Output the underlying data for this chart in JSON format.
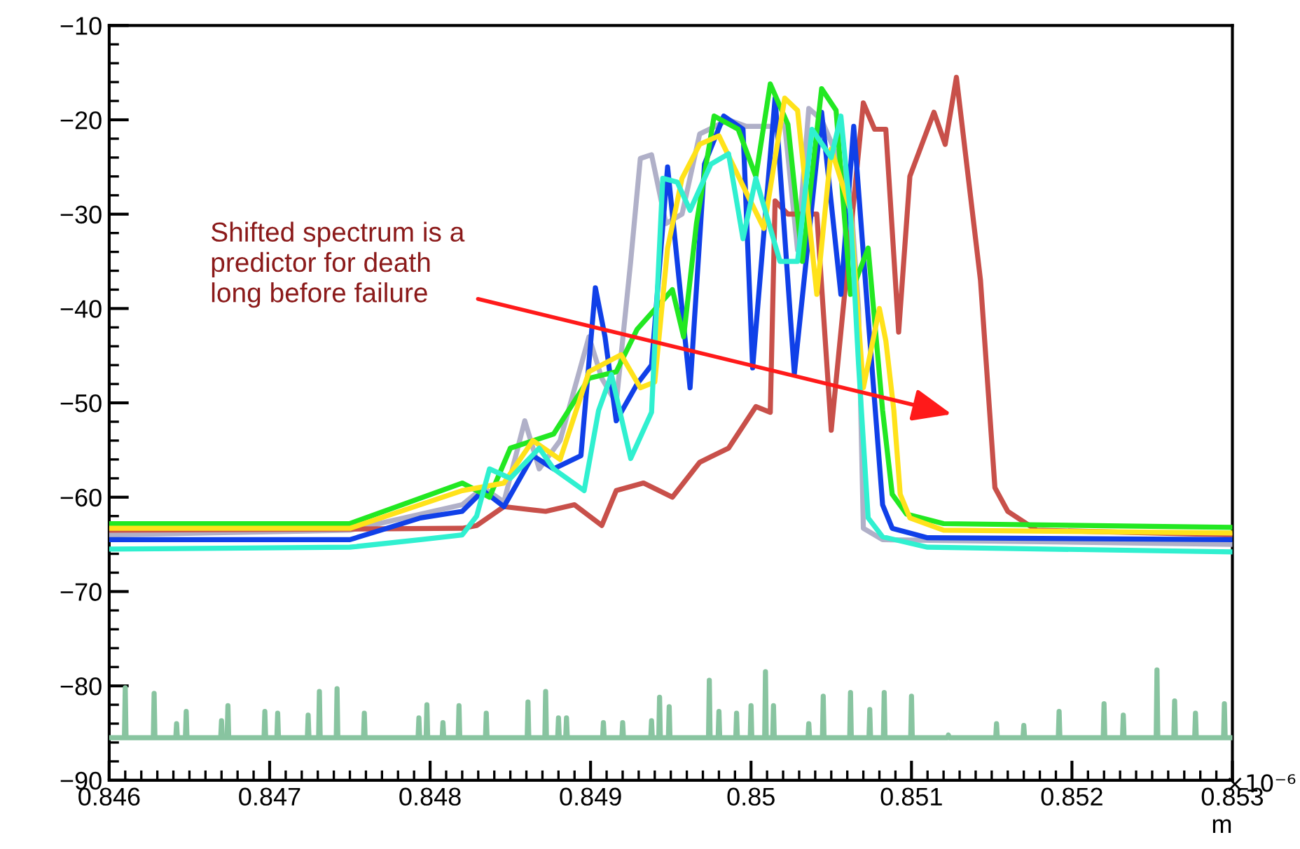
{
  "chart_data": {
    "type": "line",
    "xlabel": "m",
    "xlim": [
      0.846,
      0.853
    ],
    "xticks": [
      0.846,
      0.847,
      0.848,
      0.849,
      0.85,
      0.851,
      0.852,
      0.853
    ],
    "ylim": [
      -90,
      -10
    ],
    "yticks": [
      -90,
      -80,
      -70,
      -60,
      -50,
      -40,
      -30,
      -20,
      -10
    ],
    "grid": false,
    "legend": false,
    "marker": "none",
    "line_style": "solid",
    "annotations": [
      "Shifted spectrum is a\npredictor for death\nlong before failure",
      "×10⁻⁶"
    ],
    "series": [
      {
        "color": "#88c4a0",
        "x": [
          0.846,
          0.846095,
          0.8461,
          0.846105,
          0.846275,
          0.84628,
          0.846285,
          0.846415,
          0.84642,
          0.846425,
          0.846475,
          0.84648,
          0.846485,
          0.846695,
          0.8467,
          0.846705,
          0.846735,
          0.84674,
          0.846745,
          0.846965,
          0.84697,
          0.846975,
          0.847045,
          0.84705,
          0.847055,
          0.847235,
          0.84724,
          0.847245,
          0.847305,
          0.84731,
          0.847315,
          0.847415,
          0.84742,
          0.847425,
          0.847585,
          0.84759,
          0.847595,
          0.847925,
          0.84793,
          0.847935,
          0.847975,
          0.84798,
          0.847985,
          0.848075,
          0.84808,
          0.848085,
          0.848175,
          0.84818,
          0.848185,
          0.848345,
          0.84835,
          0.848355,
          0.848605,
          0.84861,
          0.848615,
          0.848715,
          0.84872,
          0.848725,
          0.848795,
          0.8488,
          0.848805,
          0.848845,
          0.84885,
          0.848855,
          0.849075,
          0.84908,
          0.849085,
          0.849195,
          0.8492,
          0.849205,
          0.849375,
          0.84938,
          0.849385,
          0.849425,
          0.84943,
          0.849435,
          0.849485,
          0.84949,
          0.849495,
          0.849735,
          0.84974,
          0.849745,
          0.849795,
          0.8498,
          0.849805,
          0.849905,
          0.84991,
          0.849915,
          0.849995,
          0.85,
          0.850005,
          0.850085,
          0.85009,
          0.850095,
          0.850135,
          0.85014,
          0.850145,
          0.850355,
          0.85036,
          0.850365,
          0.850445,
          0.85045,
          0.850455,
          0.850615,
          0.85062,
          0.850625,
          0.850735,
          0.85074,
          0.850745,
          0.850825,
          0.85083,
          0.850835,
          0.850995,
          0.851,
          0.851005,
          0.851225,
          0.85123,
          0.851235,
          0.851525,
          0.85153,
          0.851535,
          0.851695,
          0.8517,
          0.851705,
          0.851915,
          0.85192,
          0.851925,
          0.852195,
          0.8522,
          0.852205,
          0.852315,
          0.85232,
          0.852325,
          0.852525,
          0.85253,
          0.852535,
          0.852635,
          0.85264,
          0.852645,
          0.852765,
          0.85277,
          0.852775,
          0.852945,
          0.85295,
          0.852955,
          0.853
        ],
        "values": [
          -85.5,
          -85.5,
          -80.2,
          -85.5,
          -85.5,
          -80.8,
          -85.5,
          -85.5,
          -84.0,
          -85.5,
          -85.5,
          -82.7,
          -85.5,
          -85.5,
          -83.7,
          -85.5,
          -85.5,
          -82.1,
          -85.5,
          -85.5,
          -82.7,
          -85.5,
          -85.5,
          -82.9,
          -85.5,
          -85.5,
          -83.1,
          -85.5,
          -85.5,
          -80.6,
          -85.5,
          -85.5,
          -80.3,
          -85.5,
          -85.5,
          -82.9,
          -85.5,
          -85.5,
          -83.4,
          -85.5,
          -85.5,
          -82.0,
          -85.5,
          -85.5,
          -83.9,
          -85.5,
          -85.5,
          -82.1,
          -85.5,
          -85.5,
          -82.9,
          -85.5,
          -85.5,
          -81.7,
          -85.5,
          -85.5,
          -80.6,
          -85.5,
          -85.5,
          -83.4,
          -85.5,
          -85.5,
          -83.4,
          -85.5,
          -85.5,
          -83.9,
          -85.5,
          -85.5,
          -83.9,
          -85.5,
          -85.5,
          -83.7,
          -85.5,
          -85.5,
          -81.2,
          -85.5,
          -85.5,
          -82.2,
          -85.5,
          -85.5,
          -79.4,
          -85.5,
          -85.5,
          -82.7,
          -85.5,
          -85.5,
          -82.9,
          -85.5,
          -85.5,
          -82.1,
          -85.5,
          -85.5,
          -78.5,
          -85.5,
          -85.5,
          -82.1,
          -85.5,
          -85.5,
          -84.0,
          -85.5,
          -85.5,
          -81.1,
          -85.5,
          -85.5,
          -80.7,
          -85.5,
          -85.5,
          -82.5,
          -85.5,
          -85.5,
          -80.7,
          -85.5,
          -85.5,
          -81.1,
          -85.5,
          -85.5,
          -85.2,
          -85.5,
          -85.5,
          -84.0,
          -85.5,
          -85.5,
          -84.2,
          -85.5,
          -85.5,
          -82.7,
          -85.5,
          -85.5,
          -81.9,
          -85.5,
          -85.5,
          -83.1,
          -85.5,
          -85.5,
          -78.3,
          -85.5,
          -85.5,
          -81.6,
          -85.5,
          -85.5,
          -82.9,
          -85.5,
          -85.5,
          -81.9,
          -85.5,
          -85.5
        ]
      },
      {
        "color": "#b0b0c8",
        "x": [
          0.846,
          0.8475,
          0.8482,
          0.84833,
          0.84846,
          0.84859,
          0.84868,
          0.84881,
          0.84899,
          0.84907,
          0.84916,
          0.84925,
          0.84931,
          0.84938,
          0.84947,
          0.84957,
          0.84968,
          0.84986,
          0.84997,
          0.85012,
          0.85021,
          0.85029,
          0.85036,
          0.85044,
          0.85053,
          0.85062,
          0.85067,
          0.8507,
          0.85082,
          0.853
        ],
        "values": [
          -64,
          -63.5,
          -60.8,
          -59,
          -60.5,
          -51.9,
          -57,
          -54,
          -43,
          -47.4,
          -50,
          -35,
          -24.1,
          -23.7,
          -31,
          -30,
          -21.5,
          -20,
          -20.7,
          -20.7,
          -20.5,
          -33.8,
          -18.8,
          -20,
          -23.6,
          -28,
          -40,
          -63.3,
          -64.5,
          -65
        ]
      },
      {
        "color": "#c8504a",
        "x": [
          0.846,
          0.8482,
          0.84829,
          0.84846,
          0.84872,
          0.8489,
          0.84907,
          0.84916,
          0.84933,
          0.84951,
          0.84968,
          0.84986,
          0.85003,
          0.85012,
          0.85015,
          0.85023,
          0.85041,
          0.8505,
          0.8507,
          0.85077,
          0.85084,
          0.85092,
          0.85099,
          0.85114,
          0.85121,
          0.85128,
          0.85143,
          0.85152,
          0.8516,
          0.85178,
          0.853
        ],
        "values": [
          -63.5,
          -63.3,
          -63,
          -61,
          -61.5,
          -60.8,
          -63,
          -59.3,
          -58.5,
          -60,
          -56.3,
          -54.8,
          -50.4,
          -51,
          -28.6,
          -30,
          -30,
          -52.9,
          -18.2,
          -21,
          -21,
          -42.5,
          -26,
          -19.2,
          -22.6,
          -15.5,
          -37,
          -59,
          -61.5,
          -63.5,
          -64
        ]
      },
      {
        "color": "#1040e8",
        "x": [
          0.846,
          0.8475,
          0.84794,
          0.8482,
          0.84833,
          0.84846,
          0.84864,
          0.84877,
          0.84894,
          0.84903,
          0.84909,
          0.84916,
          0.84929,
          0.84938,
          0.84948,
          0.84962,
          0.84971,
          0.84983,
          0.84995,
          0.85001,
          0.85015,
          0.85027,
          0.85044,
          0.85056,
          0.85064,
          0.85073,
          0.85082,
          0.85088,
          0.8511,
          0.853
        ],
        "values": [
          -64.5,
          -64.5,
          -62.2,
          -61.5,
          -59.3,
          -61,
          -55.6,
          -57,
          -55.6,
          -37.8,
          -43,
          -51.9,
          -48,
          -46,
          -25,
          -48.4,
          -24.7,
          -19.6,
          -21,
          -46.3,
          -17.7,
          -46.9,
          -19.2,
          -38.5,
          -20.7,
          -41,
          -60.8,
          -63.3,
          -64.3,
          -64.5
        ]
      },
      {
        "color": "#22e822",
        "x": [
          0.846,
          0.8475,
          0.8482,
          0.84837,
          0.8485,
          0.84877,
          0.84899,
          0.84916,
          0.84929,
          0.84951,
          0.84958,
          0.84966,
          0.84977,
          0.84992,
          0.85003,
          0.85012,
          0.85023,
          0.85032,
          0.85044,
          0.85053,
          0.85062,
          0.85073,
          0.85082,
          0.85088,
          0.85097,
          0.8512,
          0.853
        ],
        "values": [
          -62.8,
          -62.8,
          -58.5,
          -60,
          -54.8,
          -53.3,
          -47.4,
          -46.7,
          -42.2,
          -38,
          -43,
          -31,
          -19.6,
          -21,
          -26,
          -16.2,
          -20.5,
          -35,
          -16.7,
          -19,
          -38.5,
          -33.6,
          -50.8,
          -59.7,
          -61.8,
          -62.8,
          -63.2
        ]
      },
      {
        "color": "#ffe21a",
        "x": [
          0.846,
          0.8475,
          0.8482,
          0.84846,
          0.84864,
          0.84881,
          0.84899,
          0.84919,
          0.84931,
          0.8494,
          0.84948,
          0.84957,
          0.84968,
          0.8498,
          0.84995,
          0.85008,
          0.85021,
          0.85029,
          0.85041,
          0.8505,
          0.85062,
          0.8507,
          0.8508,
          0.85084,
          0.85089,
          0.85093,
          0.85099,
          0.8512,
          0.853
        ],
        "values": [
          -63.3,
          -63.3,
          -59.3,
          -58.5,
          -54,
          -56,
          -46.7,
          -44.9,
          -48.4,
          -47.8,
          -33.6,
          -26.2,
          -22.6,
          -21.7,
          -27,
          -31.5,
          -17.7,
          -19,
          -38.5,
          -23.1,
          -29.6,
          -48.4,
          -40,
          -43.4,
          -50.8,
          -59.7,
          -62.2,
          -63.5,
          -63.8
        ]
      },
      {
        "color": "#30f0d0",
        "x": [
          0.846,
          0.8475,
          0.84794,
          0.8482,
          0.84829,
          0.84837,
          0.8485,
          0.84868,
          0.84877,
          0.84896,
          0.84905,
          0.84913,
          0.84925,
          0.84938,
          0.84945,
          0.84954,
          0.84962,
          0.84975,
          0.84986,
          0.84995,
          0.85003,
          0.85018,
          0.85029,
          0.85038,
          0.8505,
          0.85056,
          0.85062,
          0.85067,
          0.85073,
          0.85082,
          0.8511,
          0.853
        ],
        "values": [
          -65.5,
          -65.3,
          -64.5,
          -64,
          -62,
          -57,
          -58,
          -54.8,
          -57,
          -59.3,
          -50.8,
          -47,
          -55.9,
          -51,
          -26.2,
          -26.6,
          -29.6,
          -24.7,
          -23.6,
          -32.6,
          -26.2,
          -35,
          -35,
          -21,
          -24,
          -19.6,
          -30,
          -45.9,
          -62.2,
          -64.2,
          -65.3,
          -65.8
        ]
      }
    ]
  }
}
